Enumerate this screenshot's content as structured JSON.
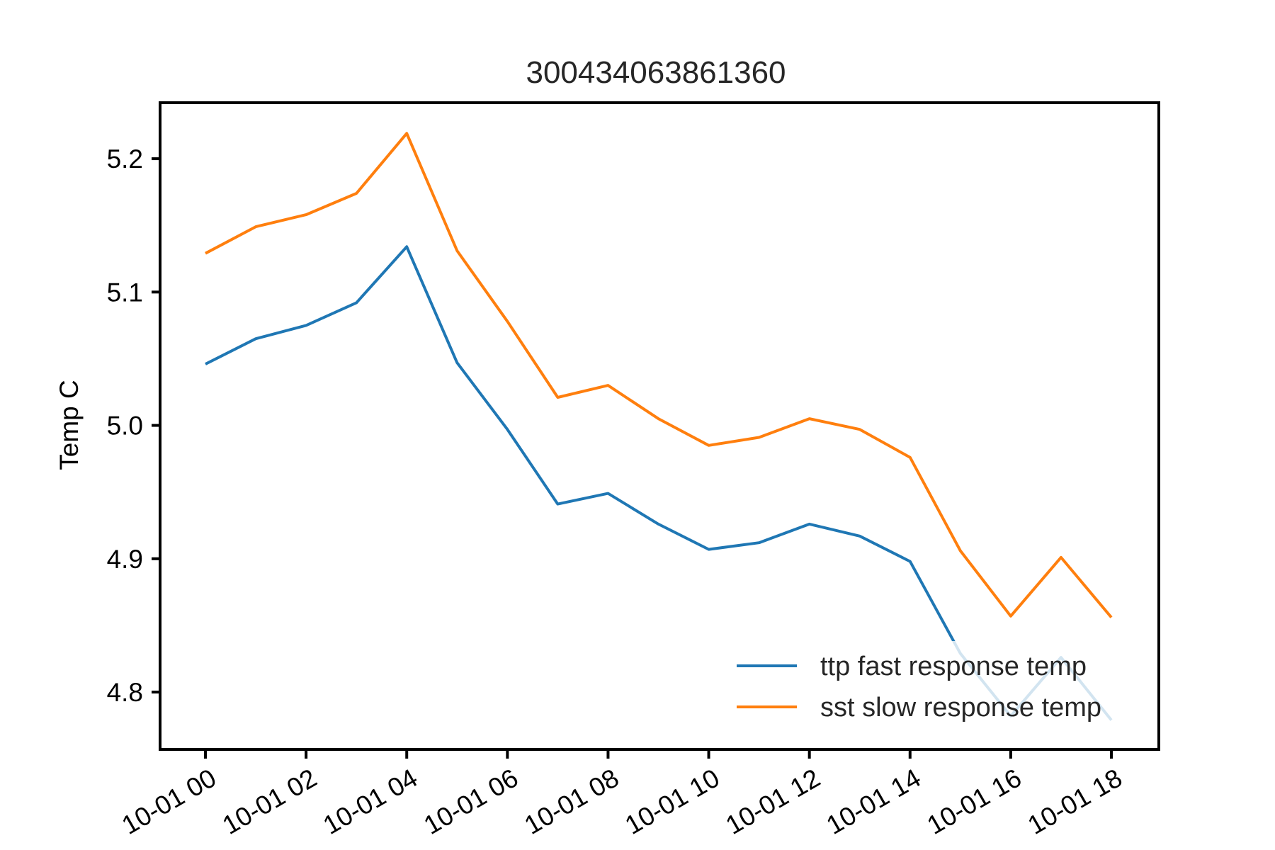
{
  "chart_data": {
    "type": "line",
    "title": "300434063861360",
    "xlabel": "",
    "ylabel": "Temp C",
    "x": [
      "10-01 00",
      "10-01 01",
      "10-01 02",
      "10-01 03",
      "10-01 04",
      "10-01 05",
      "10-01 06",
      "10-01 07",
      "10-01 08",
      "10-01 09",
      "10-01 10",
      "10-01 11",
      "10-01 12",
      "10-01 13",
      "10-01 14",
      "10-01 15",
      "10-01 16",
      "10-01 17",
      "10-01 18"
    ],
    "xticks": [
      "10-01 00",
      "10-01 02",
      "10-01 04",
      "10-01 06",
      "10-01 08",
      "10-01 10",
      "10-01 12",
      "10-01 14",
      "10-01 16",
      "10-01 18"
    ],
    "yticks": [
      "4.8",
      "4.9",
      "5.0",
      "5.1",
      "5.2"
    ],
    "ylim": [
      4.757,
      5.242
    ],
    "grid": false,
    "legend_position": "lower-right",
    "series": [
      {
        "name": "ttp fast response temp",
        "color": "#1f77b4",
        "values": [
          5.046,
          5.065,
          5.075,
          5.092,
          5.134,
          5.047,
          4.997,
          4.941,
          4.949,
          4.926,
          4.907,
          4.912,
          4.926,
          4.917,
          4.898,
          4.829,
          4.782,
          4.826,
          4.779
        ]
      },
      {
        "name": "sst slow response temp",
        "color": "#ff7f0e",
        "values": [
          5.129,
          5.149,
          5.158,
          5.174,
          5.219,
          5.131,
          5.078,
          5.021,
          5.03,
          5.005,
          4.985,
          4.991,
          5.005,
          4.997,
          4.976,
          4.906,
          4.857,
          4.901,
          4.856
        ]
      }
    ]
  }
}
